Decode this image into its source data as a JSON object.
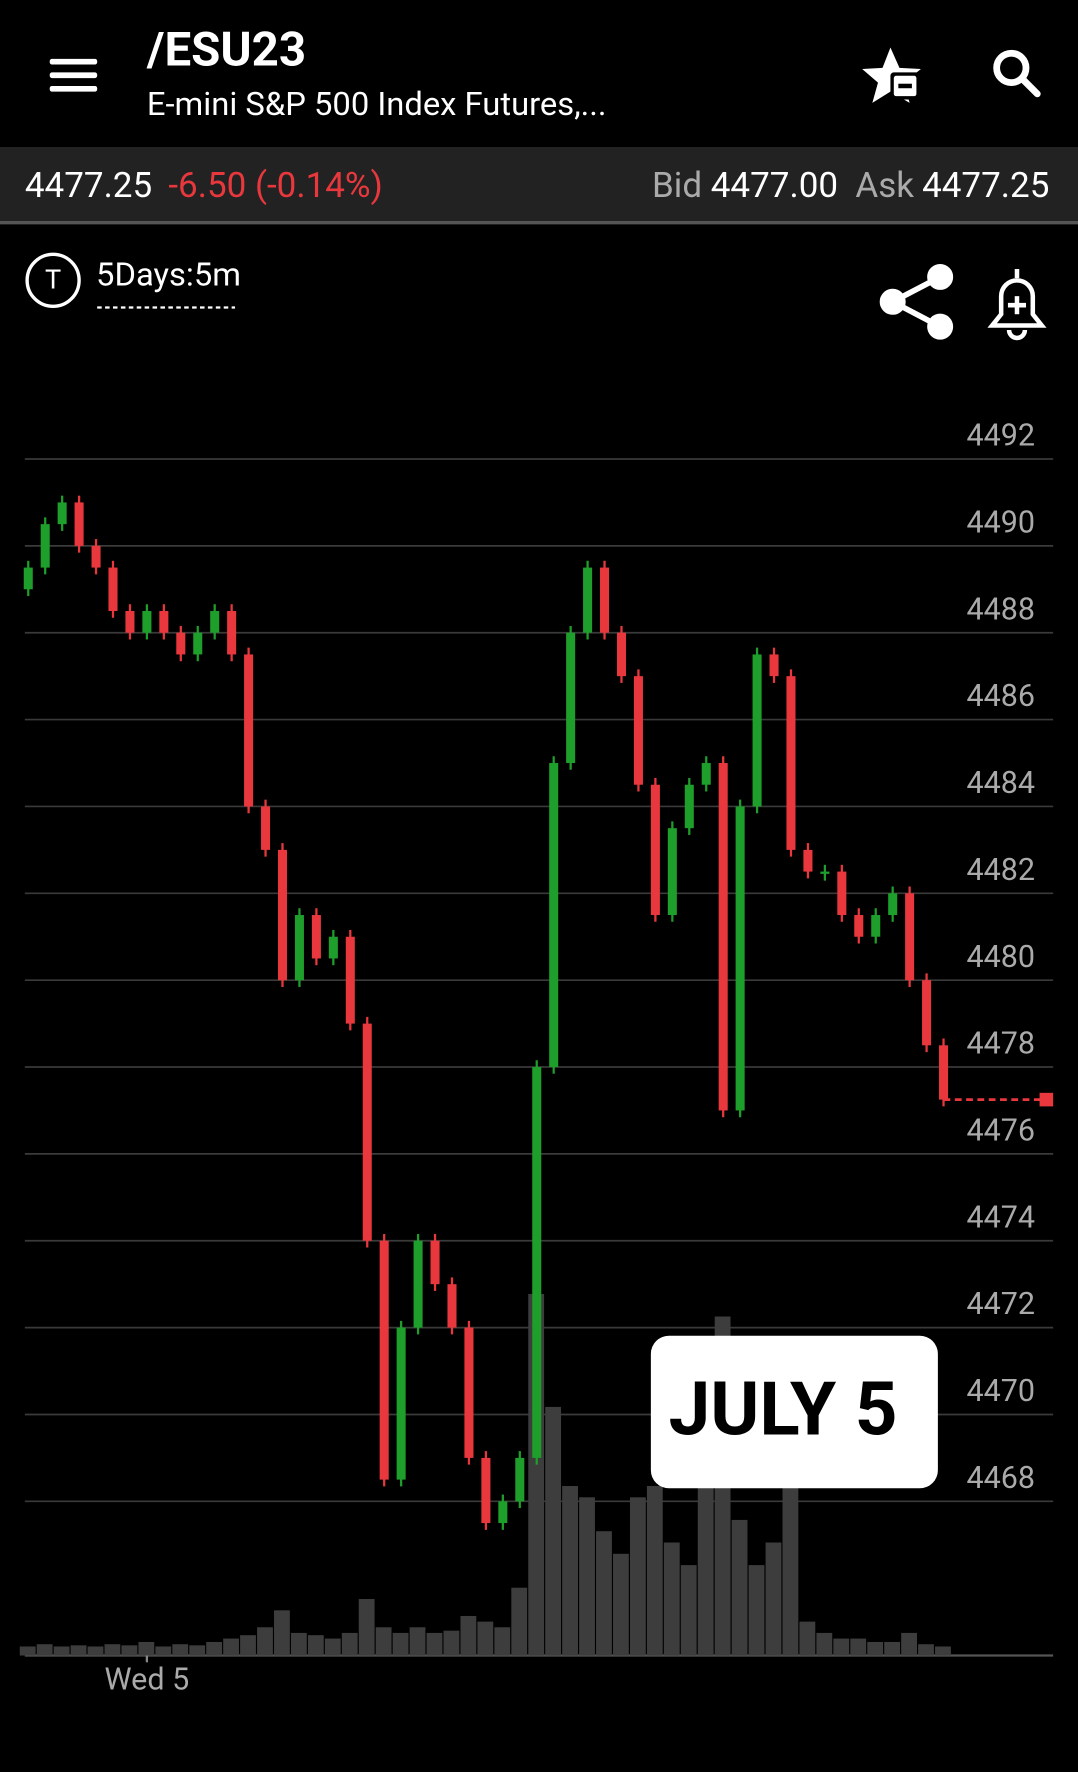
{
  "header": {
    "symbol": "/ESU23",
    "description": "E-mini S&P 500 Index Futures,..."
  },
  "quote": {
    "last": "4477.25",
    "change": "-6.50 (-0.14%)",
    "bid_label": "Bid",
    "bid": "4477.00",
    "ask_label": "Ask",
    "ask": "4477.25"
  },
  "toolbar": {
    "badge": "T",
    "interval": "5Days:5m"
  },
  "annotation": "JULY 5",
  "chart_data": {
    "type": "candlestick",
    "categories": [
      null,
      null,
      null,
      null,
      null,
      null,
      null,
      "Wed 5",
      null,
      null,
      null,
      null,
      null,
      null,
      null,
      null,
      null,
      null,
      null,
      null,
      null,
      null,
      null,
      null,
      null,
      null,
      null,
      null,
      null,
      null,
      null,
      null,
      null,
      null,
      null,
      null,
      null,
      null,
      null,
      null,
      null,
      null,
      null,
      null,
      null,
      null,
      null,
      null,
      null,
      null,
      null,
      null,
      null,
      null,
      null
    ],
    "open": [
      4489,
      4489.5,
      4490.5,
      4491,
      4490,
      4489.5,
      4488.5,
      4488,
      4488.5,
      4488,
      4487.5,
      4488,
      4488.5,
      4487.5,
      4484,
      4483,
      4480,
      4481.5,
      4480.5,
      4481,
      4479,
      4474,
      4468.5,
      4472,
      4474,
      4473,
      4472,
      4469,
      4467.5,
      4468,
      4469,
      4478,
      4485,
      4488,
      4489.5,
      4488,
      4487,
      4484.5,
      4481.5,
      4483.5,
      4484.5,
      4485,
      4477,
      4484,
      4487.5,
      4487,
      4483,
      4482.5,
      4482.5,
      4481.5,
      4481,
      4481.5,
      4482,
      4480,
      4478.5
    ],
    "close": [
      4489.5,
      4490.5,
      4491,
      4490,
      4489.5,
      4488.5,
      4488,
      4488.5,
      4488,
      4487.5,
      4488,
      4488.5,
      4487.5,
      4484,
      4483,
      4480,
      4481.5,
      4480.5,
      4481,
      4479,
      4474,
      4468.5,
      4472,
      4474,
      4473,
      4472,
      4469,
      4467.5,
      4468,
      4469,
      4478,
      4485,
      4488,
      4489.5,
      4488,
      4487,
      4484.5,
      4481.5,
      4483.5,
      4484.5,
      4485,
      4477,
      4484,
      4487.5,
      4487,
      4483,
      4482.5,
      4482.5,
      4481.5,
      4481,
      4481.5,
      4482,
      4480,
      4478.5,
      4477.25
    ],
    "volume": [
      8,
      10,
      8,
      9,
      8,
      10,
      9,
      12,
      8,
      10,
      9,
      12,
      15,
      18,
      25,
      40,
      20,
      18,
      15,
      20,
      50,
      25,
      20,
      25,
      20,
      22,
      35,
      30,
      25,
      60,
      320,
      220,
      150,
      140,
      110,
      90,
      140,
      150,
      100,
      80,
      200,
      300,
      120,
      80,
      100,
      150,
      30,
      20,
      15,
      15,
      12,
      12,
      20,
      10,
      8
    ],
    "up_color": "#1e9e2a",
    "down_color": "#e8383d",
    "volume_color": "#3d3d3d",
    "last_price": 4477.25,
    "ylim": [
      4464.45,
      4493.2
    ],
    "yticks": [
      4468,
      4470,
      4472,
      4474,
      4476,
      4478,
      4480,
      4482,
      4484,
      4486,
      4488,
      4490,
      4492
    ],
    "grid": true
  }
}
